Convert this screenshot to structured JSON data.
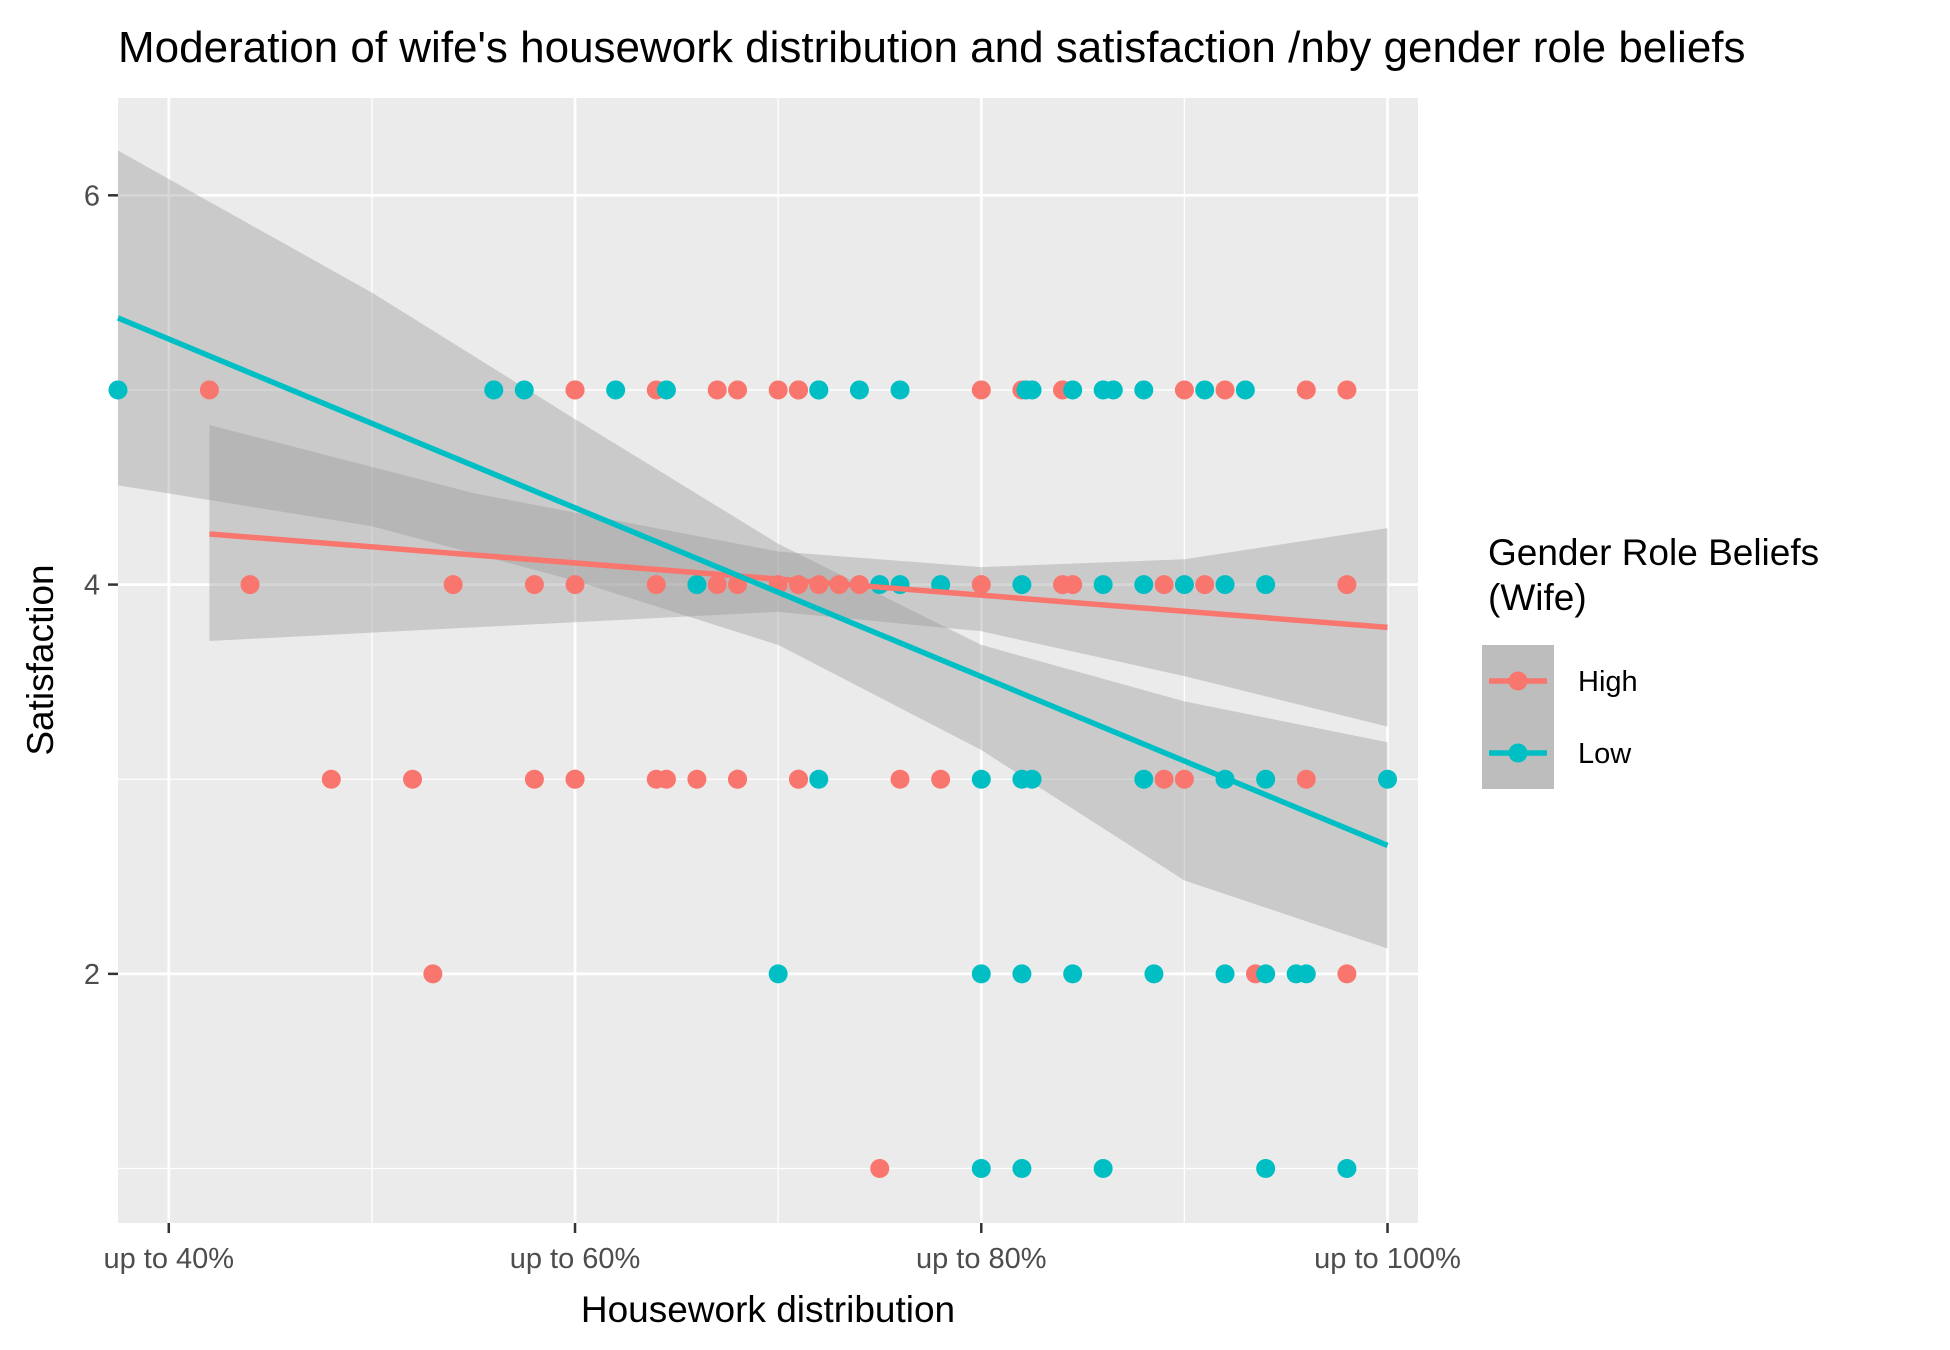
{
  "chart_data": {
    "type": "scatter",
    "title": "Moderation of wife's housework distribution and satisfaction /nby gender role beliefs",
    "xlabel": "Housework distribution",
    "ylabel": "Satisfaction",
    "xlim": [
      0.375,
      1.015
    ],
    "ylim": [
      0.72,
      6.5
    ],
    "x_ticks": [
      {
        "value": 0.4,
        "label": "up to 40%"
      },
      {
        "value": 0.6,
        "label": "up to 60%"
      },
      {
        "value": 0.8,
        "label": "up to 80%"
      },
      {
        "value": 1.0,
        "label": "up to 100%"
      }
    ],
    "x_minor_ticks": [
      0.5,
      0.7,
      0.9
    ],
    "y_ticks": [
      {
        "value": 2,
        "label": "2"
      },
      {
        "value": 4,
        "label": "4"
      },
      {
        "value": 6,
        "label": "6"
      }
    ],
    "y_minor_ticks": [
      1,
      3,
      5
    ],
    "grid": true,
    "legend": {
      "title_line1": "Gender Role Beliefs",
      "title_line2": "(Wife)",
      "placement": "right"
    },
    "series": [
      {
        "name": "High",
        "color": "#F8766D",
        "points": [
          [
            0.42,
            5
          ],
          [
            0.6,
            5
          ],
          [
            0.6,
            5
          ],
          [
            0.64,
            5
          ],
          [
            0.67,
            5
          ],
          [
            0.68,
            5
          ],
          [
            0.7,
            5
          ],
          [
            0.71,
            5
          ],
          [
            0.71,
            5
          ],
          [
            0.8,
            5
          ],
          [
            0.82,
            5
          ],
          [
            0.84,
            5
          ],
          [
            0.9,
            5
          ],
          [
            0.92,
            5
          ],
          [
            0.96,
            5
          ],
          [
            0.98,
            5
          ],
          [
            0.44,
            4
          ],
          [
            0.54,
            4
          ],
          [
            0.58,
            4
          ],
          [
            0.6,
            4
          ],
          [
            0.64,
            4
          ],
          [
            0.66,
            4
          ],
          [
            0.67,
            4
          ],
          [
            0.68,
            4
          ],
          [
            0.7,
            4
          ],
          [
            0.71,
            4
          ],
          [
            0.72,
            4
          ],
          [
            0.73,
            4
          ],
          [
            0.74,
            4
          ],
          [
            0.8,
            4
          ],
          [
            0.84,
            4
          ],
          [
            0.845,
            4
          ],
          [
            0.89,
            4
          ],
          [
            0.91,
            4
          ],
          [
            0.98,
            4
          ],
          [
            0.48,
            3
          ],
          [
            0.52,
            3
          ],
          [
            0.58,
            3
          ],
          [
            0.6,
            3
          ],
          [
            0.6,
            3
          ],
          [
            0.64,
            3
          ],
          [
            0.645,
            3
          ],
          [
            0.66,
            3
          ],
          [
            0.68,
            3
          ],
          [
            0.68,
            3
          ],
          [
            0.71,
            3
          ],
          [
            0.71,
            3
          ],
          [
            0.76,
            3
          ],
          [
            0.78,
            3
          ],
          [
            0.89,
            3
          ],
          [
            0.9,
            3
          ],
          [
            0.96,
            3
          ],
          [
            0.53,
            2
          ],
          [
            0.935,
            2
          ],
          [
            0.98,
            2
          ],
          [
            0.75,
            1
          ]
        ],
        "fit_line": [
          [
            0.42,
            4.26
          ],
          [
            1.0,
            3.78
          ]
        ],
        "ci_upper": [
          [
            0.42,
            4.82
          ],
          [
            0.55,
            4.47
          ],
          [
            0.7,
            4.17
          ],
          [
            0.8,
            4.09
          ],
          [
            0.9,
            4.13
          ],
          [
            1.0,
            4.29
          ]
        ],
        "ci_lower": [
          [
            0.42,
            3.71
          ],
          [
            0.55,
            3.78
          ],
          [
            0.7,
            3.86
          ],
          [
            0.8,
            3.76
          ],
          [
            0.9,
            3.53
          ],
          [
            1.0,
            3.27
          ]
        ]
      },
      {
        "name": "Low",
        "color": "#00BFC4",
        "points": [
          [
            0.375,
            5
          ],
          [
            0.56,
            5
          ],
          [
            0.575,
            5
          ],
          [
            0.62,
            5
          ],
          [
            0.645,
            5
          ],
          [
            0.72,
            5
          ],
          [
            0.72,
            5
          ],
          [
            0.74,
            5
          ],
          [
            0.76,
            5
          ],
          [
            0.822,
            5
          ],
          [
            0.825,
            5
          ],
          [
            0.845,
            5
          ],
          [
            0.86,
            5
          ],
          [
            0.865,
            5
          ],
          [
            0.88,
            5
          ],
          [
            0.91,
            5
          ],
          [
            0.93,
            5
          ],
          [
            0.66,
            4
          ],
          [
            0.75,
            4
          ],
          [
            0.76,
            4
          ],
          [
            0.78,
            4
          ],
          [
            0.82,
            4
          ],
          [
            0.86,
            4
          ],
          [
            0.88,
            4
          ],
          [
            0.9,
            4
          ],
          [
            0.92,
            4
          ],
          [
            0.94,
            4
          ],
          [
            0.72,
            3
          ],
          [
            0.8,
            3
          ],
          [
            0.82,
            3
          ],
          [
            0.825,
            3
          ],
          [
            0.88,
            3
          ],
          [
            0.92,
            3
          ],
          [
            0.94,
            3
          ],
          [
            1.0,
            3
          ],
          [
            0.7,
            2
          ],
          [
            0.8,
            2
          ],
          [
            0.82,
            2
          ],
          [
            0.845,
            2
          ],
          [
            0.885,
            2
          ],
          [
            0.92,
            2
          ],
          [
            0.94,
            2
          ],
          [
            0.955,
            2
          ],
          [
            0.96,
            2
          ],
          [
            0.8,
            1
          ],
          [
            0.82,
            1
          ],
          [
            0.86,
            1
          ],
          [
            0.94,
            1
          ],
          [
            0.98,
            1
          ]
        ],
        "fit_line": [
          [
            0.375,
            5.37
          ],
          [
            1.0,
            2.66
          ]
        ],
        "ci_upper": [
          [
            0.375,
            6.23
          ],
          [
            0.5,
            5.5
          ],
          [
            0.6,
            4.85
          ],
          [
            0.7,
            4.21
          ],
          [
            0.8,
            3.69
          ],
          [
            0.9,
            3.4
          ],
          [
            1.0,
            3.19
          ]
        ],
        "ci_lower": [
          [
            0.375,
            4.51
          ],
          [
            0.5,
            4.3
          ],
          [
            0.6,
            4.02
          ],
          [
            0.7,
            3.69
          ],
          [
            0.8,
            3.15
          ],
          [
            0.9,
            2.48
          ],
          [
            1.0,
            2.13
          ]
        ]
      }
    ]
  }
}
